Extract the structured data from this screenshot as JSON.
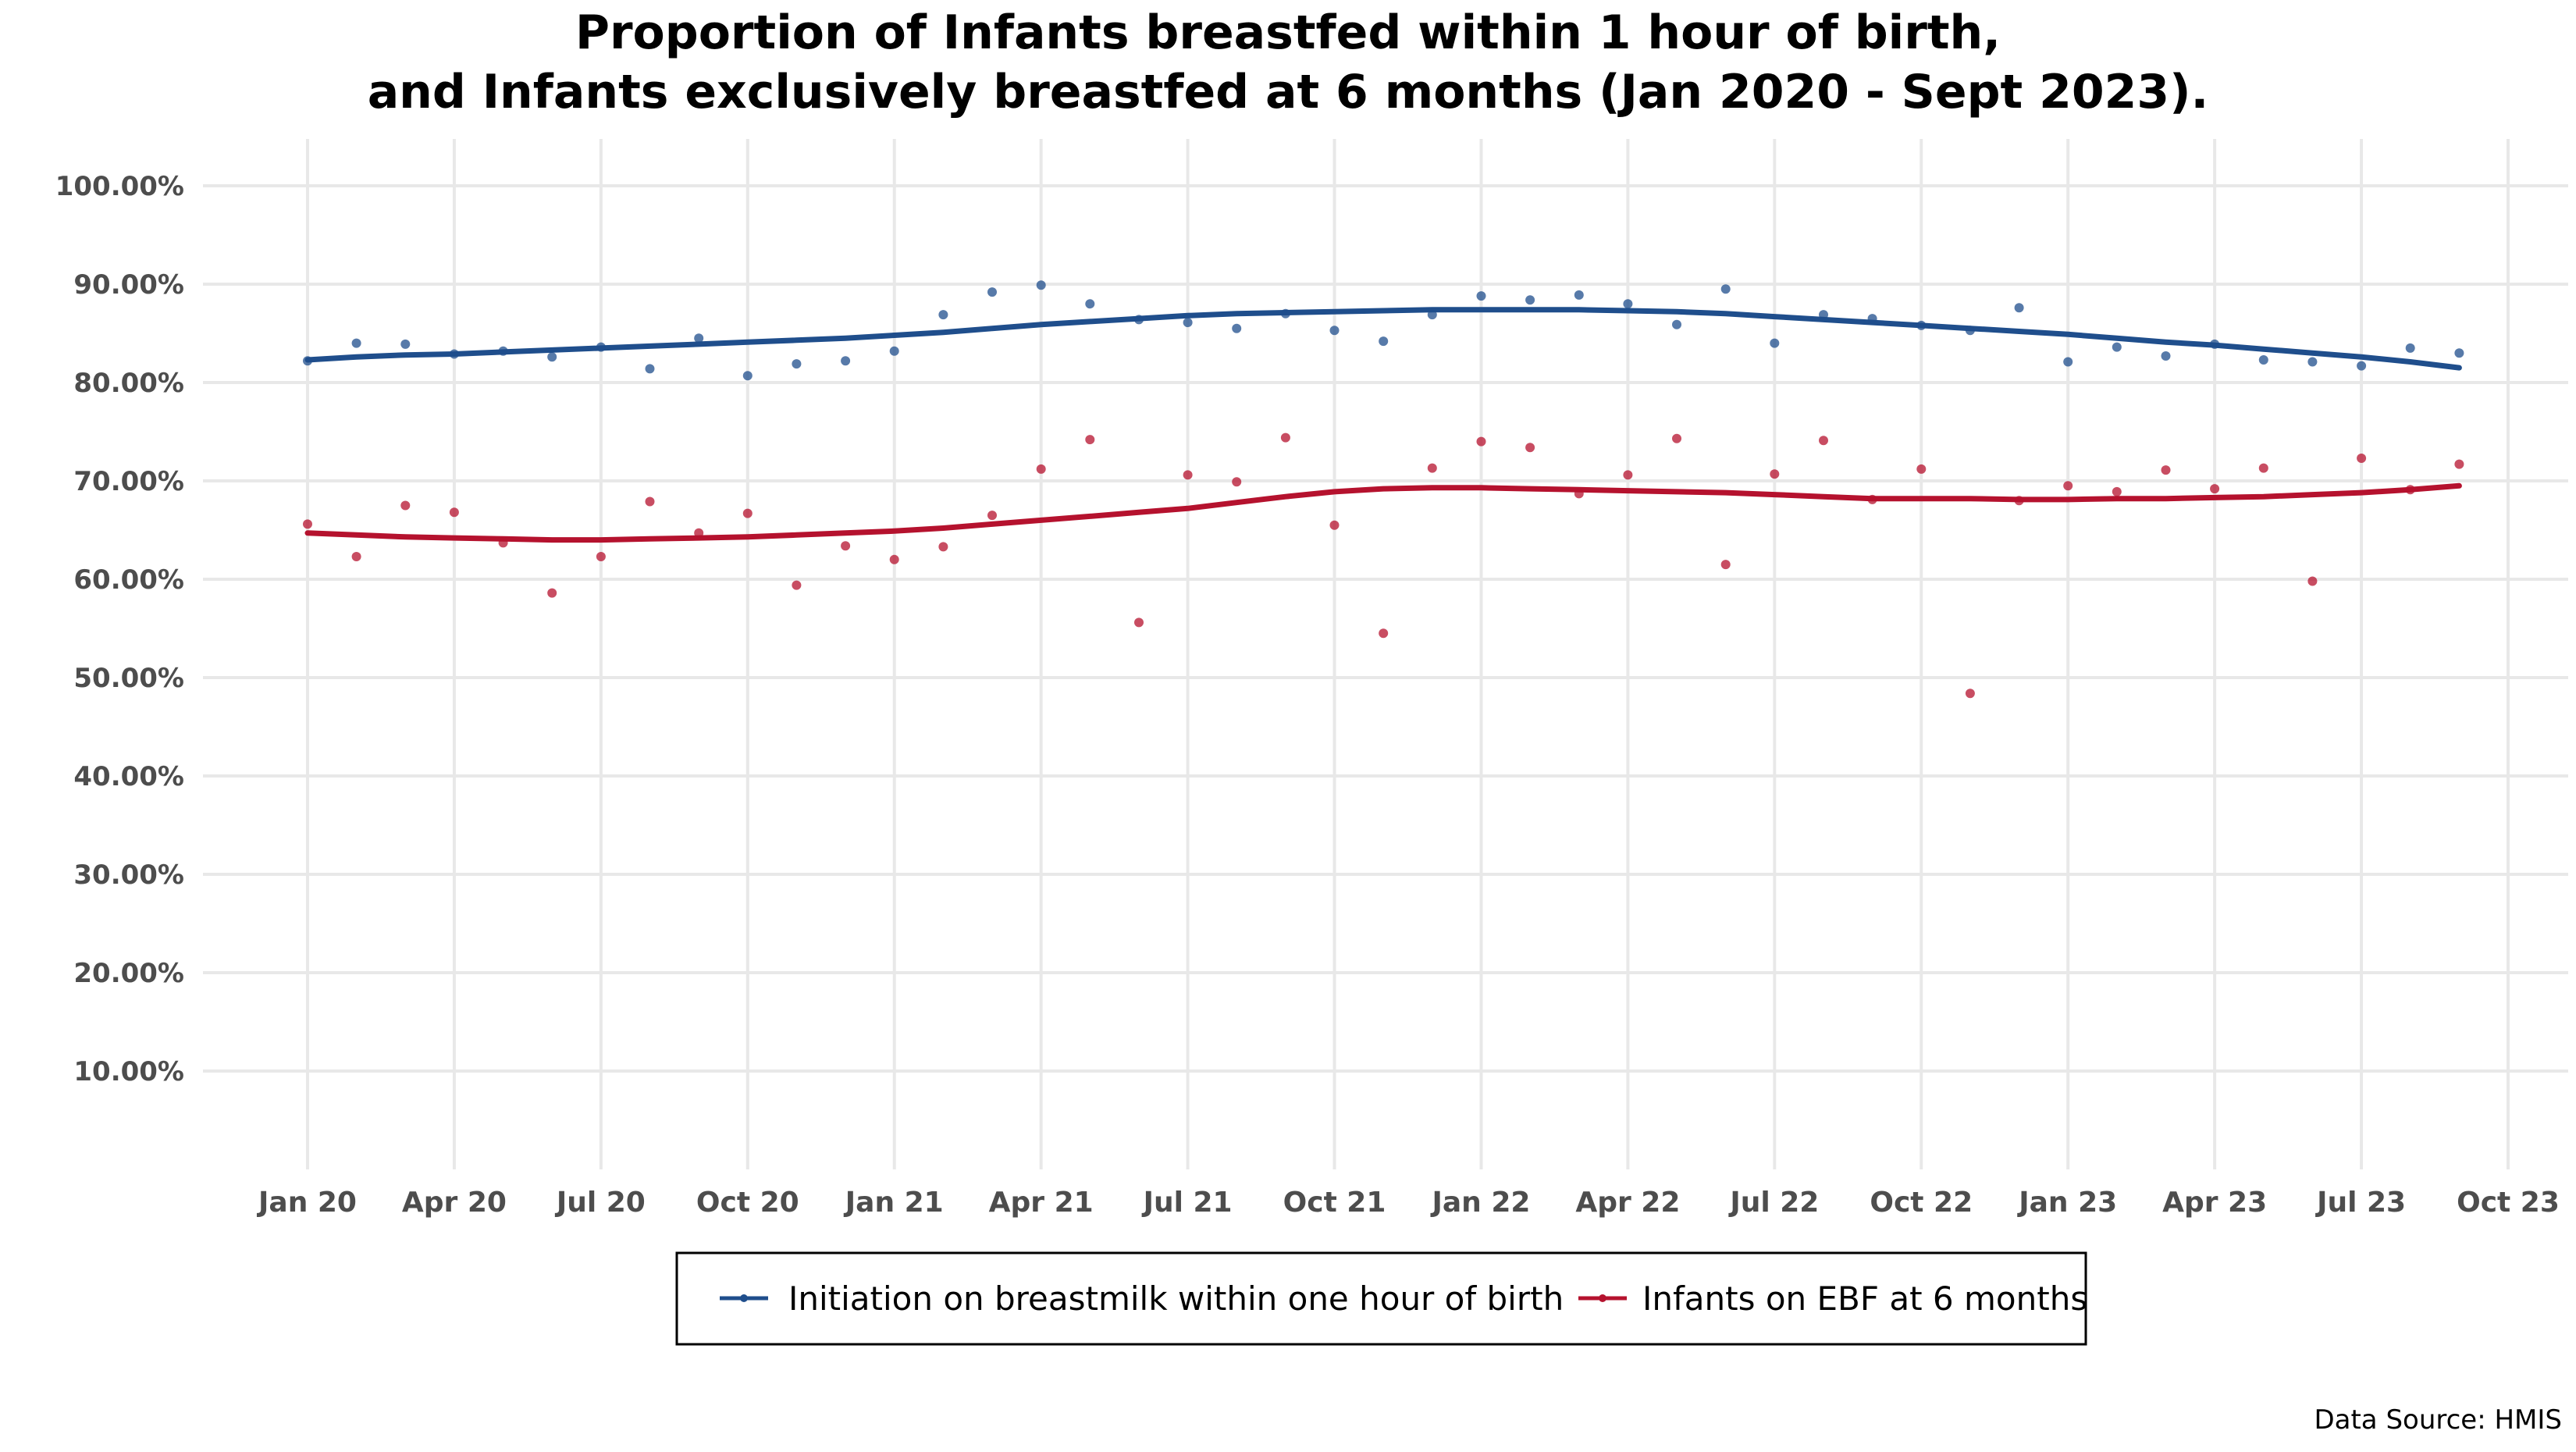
{
  "chart_data": {
    "type": "line",
    "title_lines": [
      "Proportion of Infants breastfed within 1 hour of birth,",
      "and Infants exclusively breastfed at 6 months (Jan 2020 - Sept 2023)."
    ],
    "xlabel": "",
    "ylabel": "",
    "x_range": [
      "2020-01",
      "2023-10"
    ],
    "ylim": [
      0,
      1.05
    ],
    "y_ticks": [
      0.1,
      0.2,
      0.3,
      0.4,
      0.5,
      0.6,
      0.7,
      0.8,
      0.9,
      1.0
    ],
    "y_tick_labels": [
      "10.00%",
      "20.00%",
      "30.00%",
      "40.00%",
      "50.00%",
      "60.00%",
      "70.00%",
      "80.00%",
      "90.00%",
      "100.00%"
    ],
    "x_ticks": [
      "2020-01",
      "2020-04",
      "2020-07",
      "2020-10",
      "2021-01",
      "2021-04",
      "2021-07",
      "2021-10",
      "2022-01",
      "2022-04",
      "2022-07",
      "2022-10",
      "2023-01",
      "2023-04",
      "2023-07",
      "2023-10"
    ],
    "x_tick_labels": [
      "Jan 20",
      "Apr 20",
      "Jul 20",
      "Oct 20",
      "Jan 21",
      "Apr 21",
      "Jul 21",
      "Oct 21",
      "Jan 22",
      "Apr 22",
      "Jul 22",
      "Oct 22",
      "Jan 23",
      "Apr 23",
      "Jul 23",
      "Oct 23"
    ],
    "grid": true,
    "legend_position": "bottom",
    "caption": "Data Source: HMIS",
    "series": [
      {
        "name": "Initiation on breastmilk within one hour of birth",
        "color": "#1f4e8c",
        "x": [
          "2020-01",
          "2020-02",
          "2020-03",
          "2020-04",
          "2020-05",
          "2020-06",
          "2020-07",
          "2020-08",
          "2020-09",
          "2020-10",
          "2020-11",
          "2020-12",
          "2021-01",
          "2021-02",
          "2021-03",
          "2021-04",
          "2021-05",
          "2021-06",
          "2021-07",
          "2021-08",
          "2021-09",
          "2021-10",
          "2021-11",
          "2021-12",
          "2022-01",
          "2022-02",
          "2022-03",
          "2022-04",
          "2022-05",
          "2022-06",
          "2022-07",
          "2022-08",
          "2022-09",
          "2022-10",
          "2022-11",
          "2022-12",
          "2023-01",
          "2023-02",
          "2023-03",
          "2023-04",
          "2023-05",
          "2023-06",
          "2023-07",
          "2023-08",
          "2023-09"
        ],
        "values": [
          0.822,
          0.84,
          0.839,
          0.829,
          0.832,
          0.826,
          0.836,
          0.814,
          0.845,
          0.807,
          0.819,
          0.822,
          0.832,
          0.869,
          0.892,
          0.899,
          0.88,
          0.864,
          0.861,
          0.855,
          0.87,
          0.853,
          0.842,
          0.869,
          0.888,
          0.884,
          0.889,
          0.88,
          0.859,
          0.895,
          0.84,
          0.869,
          0.865,
          0.858,
          0.853,
          0.876,
          0.821,
          0.836,
          0.827,
          0.839,
          0.823,
          0.821,
          0.817,
          0.835,
          0.83
        ],
        "trend": [
          0.823,
          0.826,
          0.828,
          0.829,
          0.831,
          0.833,
          0.835,
          0.837,
          0.839,
          0.841,
          0.843,
          0.845,
          0.848,
          0.851,
          0.855,
          0.859,
          0.862,
          0.865,
          0.868,
          0.87,
          0.871,
          0.872,
          0.873,
          0.874,
          0.874,
          0.874,
          0.874,
          0.873,
          0.872,
          0.87,
          0.867,
          0.864,
          0.861,
          0.858,
          0.855,
          0.852,
          0.849,
          0.845,
          0.841,
          0.838,
          0.834,
          0.83,
          0.826,
          0.821,
          0.815
        ]
      },
      {
        "name": "Infants on EBF at 6 months",
        "color": "#b5122e",
        "x": [
          "2020-01",
          "2020-02",
          "2020-03",
          "2020-04",
          "2020-05",
          "2020-06",
          "2020-07",
          "2020-08",
          "2020-09",
          "2020-10",
          "2020-11",
          "2020-12",
          "2021-01",
          "2021-02",
          "2021-03",
          "2021-04",
          "2021-05",
          "2021-06",
          "2021-07",
          "2021-08",
          "2021-09",
          "2021-10",
          "2021-11",
          "2021-12",
          "2022-01",
          "2022-02",
          "2022-03",
          "2022-04",
          "2022-05",
          "2022-06",
          "2022-07",
          "2022-08",
          "2022-09",
          "2022-10",
          "2022-11",
          "2022-12",
          "2023-01",
          "2023-02",
          "2023-03",
          "2023-04",
          "2023-05",
          "2023-06",
          "2023-07",
          "2023-08",
          "2023-09"
        ],
        "values": [
          0.656,
          0.623,
          0.675,
          0.668,
          0.637,
          0.586,
          0.623,
          0.679,
          0.647,
          0.667,
          0.594,
          0.634,
          0.62,
          0.633,
          0.665,
          0.712,
          0.742,
          0.556,
          0.706,
          0.699,
          0.744,
          0.655,
          0.545,
          0.713,
          0.74,
          0.734,
          0.687,
          0.706,
          0.743,
          0.615,
          0.707,
          0.741,
          0.681,
          0.712,
          0.484,
          0.68,
          0.695,
          0.689,
          0.711,
          0.692,
          0.713,
          0.598,
          0.723,
          0.691,
          0.717
        ],
        "trend": [
          0.647,
          0.645,
          0.643,
          0.642,
          0.641,
          0.64,
          0.64,
          0.641,
          0.642,
          0.643,
          0.645,
          0.647,
          0.649,
          0.652,
          0.656,
          0.66,
          0.664,
          0.668,
          0.672,
          0.678,
          0.684,
          0.689,
          0.692,
          0.693,
          0.693,
          0.692,
          0.691,
          0.69,
          0.689,
          0.688,
          0.686,
          0.684,
          0.682,
          0.682,
          0.682,
          0.681,
          0.681,
          0.682,
          0.682,
          0.683,
          0.684,
          0.686,
          0.688,
          0.691,
          0.695
        ]
      }
    ]
  }
}
